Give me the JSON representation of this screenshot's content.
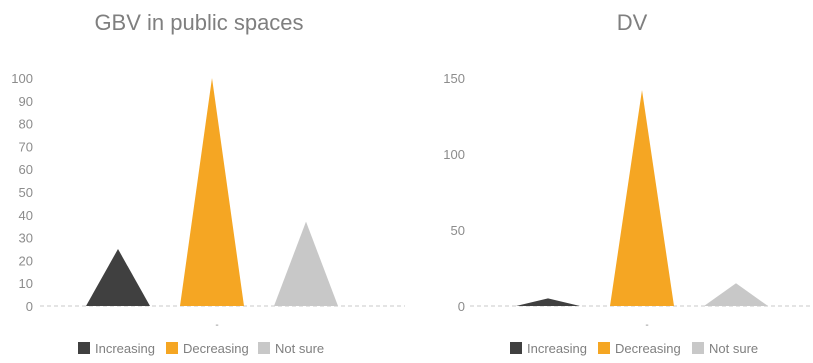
{
  "chart_data": [
    {
      "type": "bar",
      "title": "GBV in public spaces",
      "categories": [
        ""
      ],
      "series": [
        {
          "name": "Increasing",
          "values": [
            25
          ],
          "color": "#404040"
        },
        {
          "name": "Decreasing",
          "values": [
            100
          ],
          "color": "#f5a623"
        },
        {
          "name": "Not sure",
          "values": [
            37
          ],
          "color": "#c8c8c8"
        }
      ],
      "ylim": [
        0,
        100
      ],
      "yticks": [
        "0",
        "10",
        "20",
        "30",
        "40",
        "50",
        "60",
        "70",
        "80",
        "90",
        "100"
      ],
      "xtick_label": "-",
      "legend": "bottom",
      "grid": false,
      "mark_shape": "triangle"
    },
    {
      "type": "bar",
      "title": "DV",
      "categories": [
        ""
      ],
      "series": [
        {
          "name": "Increasing",
          "values": [
            5
          ],
          "color": "#404040"
        },
        {
          "name": "Decreasing",
          "values": [
            142
          ],
          "color": "#f5a623"
        },
        {
          "name": "Not sure",
          "values": [
            15
          ],
          "color": "#c8c8c8"
        }
      ],
      "ylim": [
        0,
        150
      ],
      "yticks": [
        "0",
        "50",
        "100",
        "150"
      ],
      "xtick_label": "-",
      "legend": "bottom",
      "grid": false,
      "mark_shape": "triangle"
    }
  ]
}
